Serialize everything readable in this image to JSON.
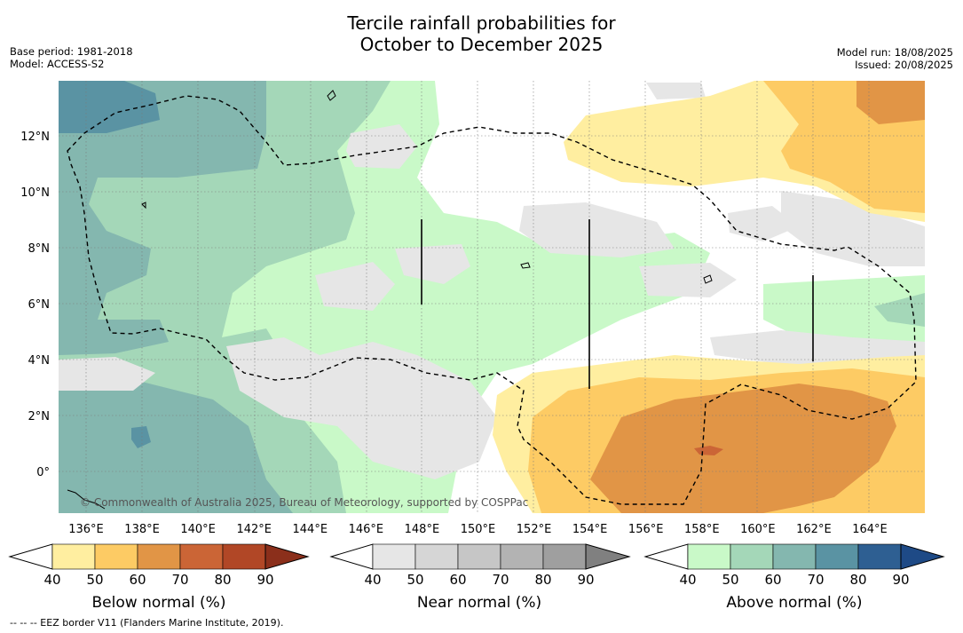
{
  "title_line1": "Tercile rainfall probabilities for",
  "title_line2": "October to December 2025",
  "base_period": "Base period: 1981-2018",
  "model": "Model: ACCESS-S2",
  "model_run": "Model run: 18/08/2025",
  "issued": "Issued: 20/08/2025",
  "copyright": "© Commonwealth of Australia 2025, Bureau of Meteorology, supported by COSPPac",
  "footnote": "--  --  -- EEZ border V11 (Flanders Marine Institute, 2019).",
  "x_ticks": [
    "136°E",
    "138°E",
    "140°E",
    "142°E",
    "144°E",
    "146°E",
    "148°E",
    "150°E",
    "152°E",
    "154°E",
    "156°E",
    "158°E",
    "160°E",
    "162°E",
    "164°E"
  ],
  "y_ticks": [
    "12°N",
    "10°N",
    "8°N",
    "6°N",
    "4°N",
    "2°N",
    "0°"
  ],
  "colorbars": [
    {
      "label": "Below normal (%)",
      "ticks": [
        "40",
        "50",
        "60",
        "70",
        "80",
        "90"
      ],
      "colors": [
        "#ffeea0",
        "#fdcb64",
        "#e19546",
        "#cb6536",
        "#b14726"
      ],
      "arrow_color": "#8b2f1b"
    },
    {
      "label": "Near normal (%)",
      "ticks": [
        "40",
        "50",
        "60",
        "70",
        "80",
        "90"
      ],
      "colors": [
        "#e6e6e6",
        "#d6d6d6",
        "#c6c6c6",
        "#b3b3b3",
        "#9f9f9f"
      ],
      "arrow_color": "#808080"
    },
    {
      "label": "Above normal (%)",
      "ticks": [
        "40",
        "50",
        "60",
        "70",
        "80",
        "90"
      ],
      "colors": [
        "#c9f9c8",
        "#a4d7b8",
        "#84b7af",
        "#5a93a3",
        "#2e5f92"
      ],
      "arrow_color": "#1e4a86"
    }
  ],
  "colors": {
    "below_40": "#ffeea0",
    "below_50": "#fdcb64",
    "below_60": "#e19546",
    "below_70": "#cb6536",
    "near_40": "#e6e6e6",
    "above_40": "#c9f9c8",
    "above_50": "#a4d7b8",
    "above_60": "#84b7af",
    "above_70": "#5a93a3",
    "above_80": "#2e5f92"
  }
}
